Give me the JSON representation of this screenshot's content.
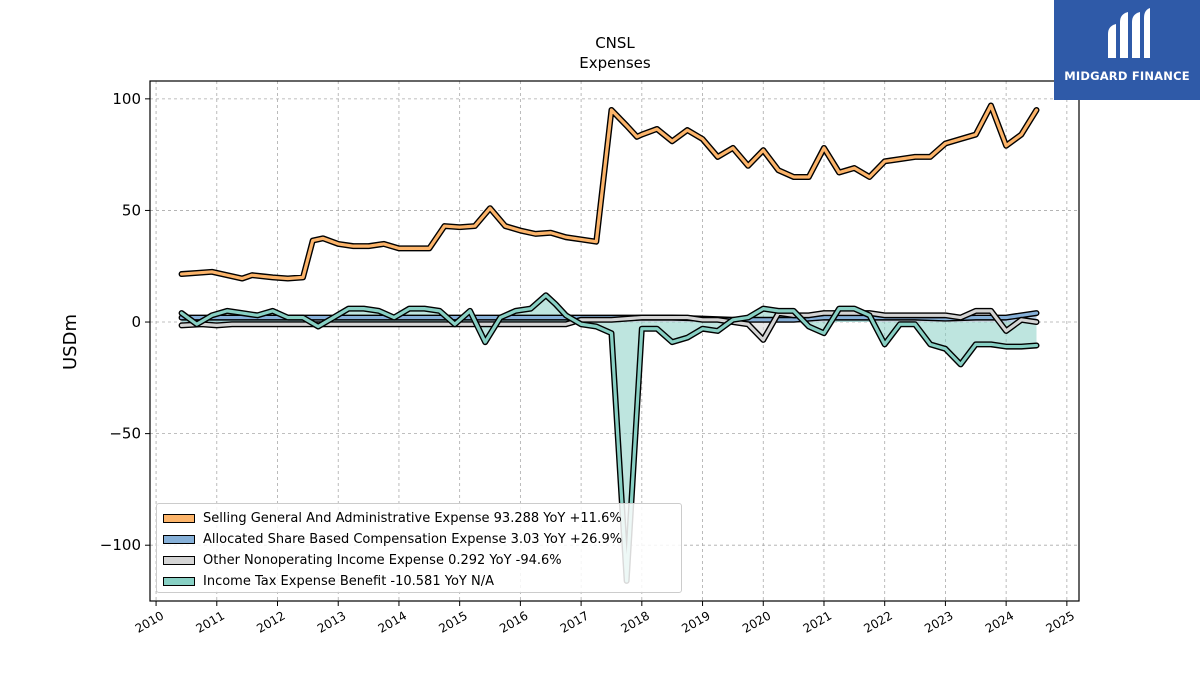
{
  "brand": {
    "name": "MIDGARD FINANCE",
    "color": "#2f5aa8"
  },
  "chart_data": {
    "type": "line",
    "title": "CNSL",
    "subtitle": "Expenses",
    "xlabel": "",
    "ylabel": "USDm",
    "xlim": [
      2009.9,
      2025.2
    ],
    "ylim": [
      -125,
      108
    ],
    "x_ticks": [
      "2010",
      "2011",
      "2012",
      "2013",
      "2014",
      "2015",
      "2016",
      "2017",
      "2018",
      "2019",
      "2020",
      "2021",
      "2022",
      "2023",
      "2024",
      "2025"
    ],
    "y_ticks": [
      -100,
      -50,
      0,
      50,
      100
    ],
    "y_tick_labels": [
      "−100",
      "−50",
      "0",
      "50",
      "100"
    ],
    "grid": true,
    "legend_position": "lower-left",
    "series": [
      {
        "name": "Selling General And Administrative Expense",
        "legend": "Selling General And Administrative Expense  93.288 YoY +11.6%",
        "color": "#fcb46a",
        "x": [
          2010.42,
          2010.67,
          2010.92,
          2011.17,
          2011.42,
          2011.58,
          2011.75,
          2011.92,
          2012.17,
          2012.42,
          2012.58,
          2012.75,
          2013.0,
          2013.25,
          2013.5,
          2013.75,
          2014.0,
          2014.25,
          2014.5,
          2014.75,
          2015.0,
          2015.25,
          2015.5,
          2015.75,
          2016.0,
          2016.25,
          2016.5,
          2016.75,
          2017.0,
          2017.25,
          2017.5,
          2017.75,
          2017.92,
          2018.0,
          2018.25,
          2018.5,
          2018.75,
          2019.0,
          2019.25,
          2019.5,
          2019.75,
          2020.0,
          2020.25,
          2020.5,
          2020.75,
          2021.0,
          2021.25,
          2021.5,
          2021.75,
          2022.0,
          2022.25,
          2022.5,
          2022.75,
          2023.0,
          2023.25,
          2023.5,
          2023.75,
          2024.0,
          2024.25,
          2024.5
        ],
        "y": [
          21.5,
          22,
          22.5,
          21,
          19.5,
          21,
          20.5,
          20,
          19.5,
          20,
          36.5,
          37.5,
          35,
          34,
          34,
          35,
          33,
          33,
          33,
          43,
          42.5,
          43,
          51,
          43,
          41,
          39.5,
          40,
          38,
          37,
          36,
          95,
          88,
          83,
          84,
          86.5,
          81,
          86,
          82,
          74,
          78,
          70,
          77,
          68,
          65,
          65,
          78,
          67,
          69,
          65,
          72,
          73,
          74,
          74,
          80,
          82,
          84,
          97,
          79,
          84,
          95
        ]
      },
      {
        "name": "Allocated Share Based Compensation Expense",
        "legend": "Allocated Share Based Compensation Expense  3.03 YoY +26.9%",
        "color": "#86b0d8",
        "x": [
          2010.42,
          2011.0,
          2011.5,
          2012.0,
          2012.5,
          2013.0,
          2013.5,
          2014.0,
          2014.5,
          2015.0,
          2015.5,
          2016.0,
          2016.5,
          2017.0,
          2017.5,
          2018.0,
          2018.5,
          2019.0,
          2019.5,
          2020.0,
          2020.5,
          2021.0,
          2021.5,
          2022.0,
          2022.5,
          2023.0,
          2023.5,
          2024.0,
          2024.5
        ],
        "y": [
          2,
          2,
          2,
          2,
          2,
          2,
          2,
          2,
          2,
          2,
          2,
          2,
          2,
          2,
          2,
          2,
          2,
          1.5,
          1,
          1,
          1,
          2,
          2,
          2,
          2,
          1.5,
          2,
          2,
          4
        ]
      },
      {
        "name": "Other Nonoperating Income Expense",
        "legend": "Other Nonoperating Income Expense  0.292 YoY -94.6%",
        "color": "#d4d4d4",
        "x": [
          2010.42,
          2010.75,
          2011.0,
          2011.25,
          2011.5,
          2012.0,
          2012.5,
          2013.0,
          2013.5,
          2013.75,
          2014.0,
          2014.25,
          2014.5,
          2014.75,
          2015.0,
          2015.5,
          2016.0,
          2016.25,
          2016.5,
          2016.75,
          2017.0,
          2017.5,
          2018.0,
          2018.5,
          2018.75,
          2019.0,
          2019.25,
          2019.5,
          2019.75,
          2020.0,
          2020.25,
          2020.5,
          2020.75,
          2021.0,
          2021.25,
          2021.5,
          2021.75,
          2022.0,
          2022.25,
          2022.5,
          2022.75,
          2023.0,
          2023.25,
          2023.5,
          2023.75,
          2024.0,
          2024.25,
          2024.5
        ],
        "y": [
          -1.5,
          -1,
          -1.5,
          -1,
          -1,
          -1,
          -1,
          -1,
          -1,
          -1,
          -1,
          -1,
          -1,
          -1,
          -1,
          -1,
          -1,
          -1,
          -1,
          -1,
          1,
          1,
          2,
          2,
          2,
          1,
          1,
          0,
          -1,
          -8,
          4,
          3,
          3,
          4,
          4,
          4,
          4,
          3,
          3,
          3,
          3,
          3,
          2,
          5,
          5,
          -4,
          1,
          0
        ]
      },
      {
        "name": "Income Tax Expense Benefit",
        "legend": "Income Tax Expense Benefit  -10.581 YoY N/A",
        "color": "#88d0c4",
        "x": [
          2010.42,
          2010.67,
          2010.92,
          2011.17,
          2011.42,
          2011.67,
          2011.92,
          2012.17,
          2012.42,
          2012.67,
          2012.92,
          2013.17,
          2013.42,
          2013.67,
          2013.92,
          2014.17,
          2014.42,
          2014.67,
          2014.92,
          2015.17,
          2015.42,
          2015.67,
          2015.92,
          2016.17,
          2016.42,
          2016.58,
          2016.75,
          2017.0,
          2017.25,
          2017.5,
          2017.75,
          2018.0,
          2018.25,
          2018.5,
          2018.75,
          2019.0,
          2019.25,
          2019.5,
          2019.75,
          2020.0,
          2020.25,
          2020.5,
          2020.75,
          2021.0,
          2021.25,
          2021.5,
          2021.75,
          2022.0,
          2022.25,
          2022.5,
          2022.75,
          2023.0,
          2023.25,
          2023.5,
          2023.75,
          2024.0,
          2024.25,
          2024.5
        ],
        "y": [
          4,
          -1,
          3,
          5,
          4,
          3,
          5,
          2,
          2,
          -2,
          2,
          6,
          6,
          5,
          2,
          6,
          6,
          5,
          -1,
          5,
          -9,
          2,
          5,
          6,
          12,
          8,
          3,
          -1,
          -2,
          -5,
          -116,
          -3,
          -3,
          -9,
          -7,
          -3,
          -4,
          1,
          2,
          6,
          5,
          5,
          -2,
          -5,
          6,
          6,
          3,
          -10,
          -1,
          -1,
          -10,
          -12,
          -19,
          -10,
          -10,
          -11,
          -11,
          -10.5
        ]
      }
    ]
  }
}
